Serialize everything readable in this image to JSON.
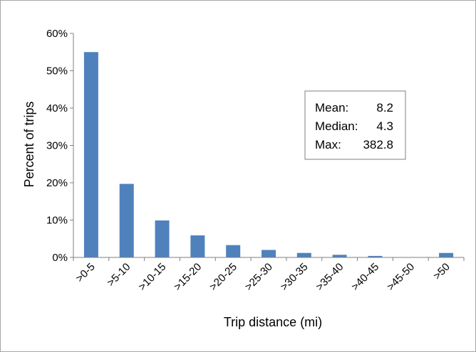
{
  "chart_data": {
    "type": "bar",
    "categories": [
      ">0-5",
      ">5-10",
      ">10-15",
      ">15-20",
      ">20-25",
      ">25-30",
      ">30-35",
      ">35-40",
      ">40-45",
      ">45-50",
      ">50"
    ],
    "values": [
      55,
      19.7,
      9.9,
      5.9,
      3.3,
      2,
      1.2,
      0.7,
      0.4,
      0,
      1.2
    ],
    "xlabel": "Trip distance (mi)",
    "ylabel": "Percent of trips",
    "ylim": [
      0,
      60
    ],
    "yticks": [
      "0%",
      "10%",
      "20%",
      "30%",
      "40%",
      "50%",
      "60%"
    ],
    "grid": false,
    "bar_color": "#4f81bd",
    "annotation": {
      "mean_label": "Mean:",
      "mean_value": "8.2",
      "median_label": "Median:",
      "median_value": "4.3",
      "max_label": "Max:",
      "max_value": "382.8"
    }
  }
}
